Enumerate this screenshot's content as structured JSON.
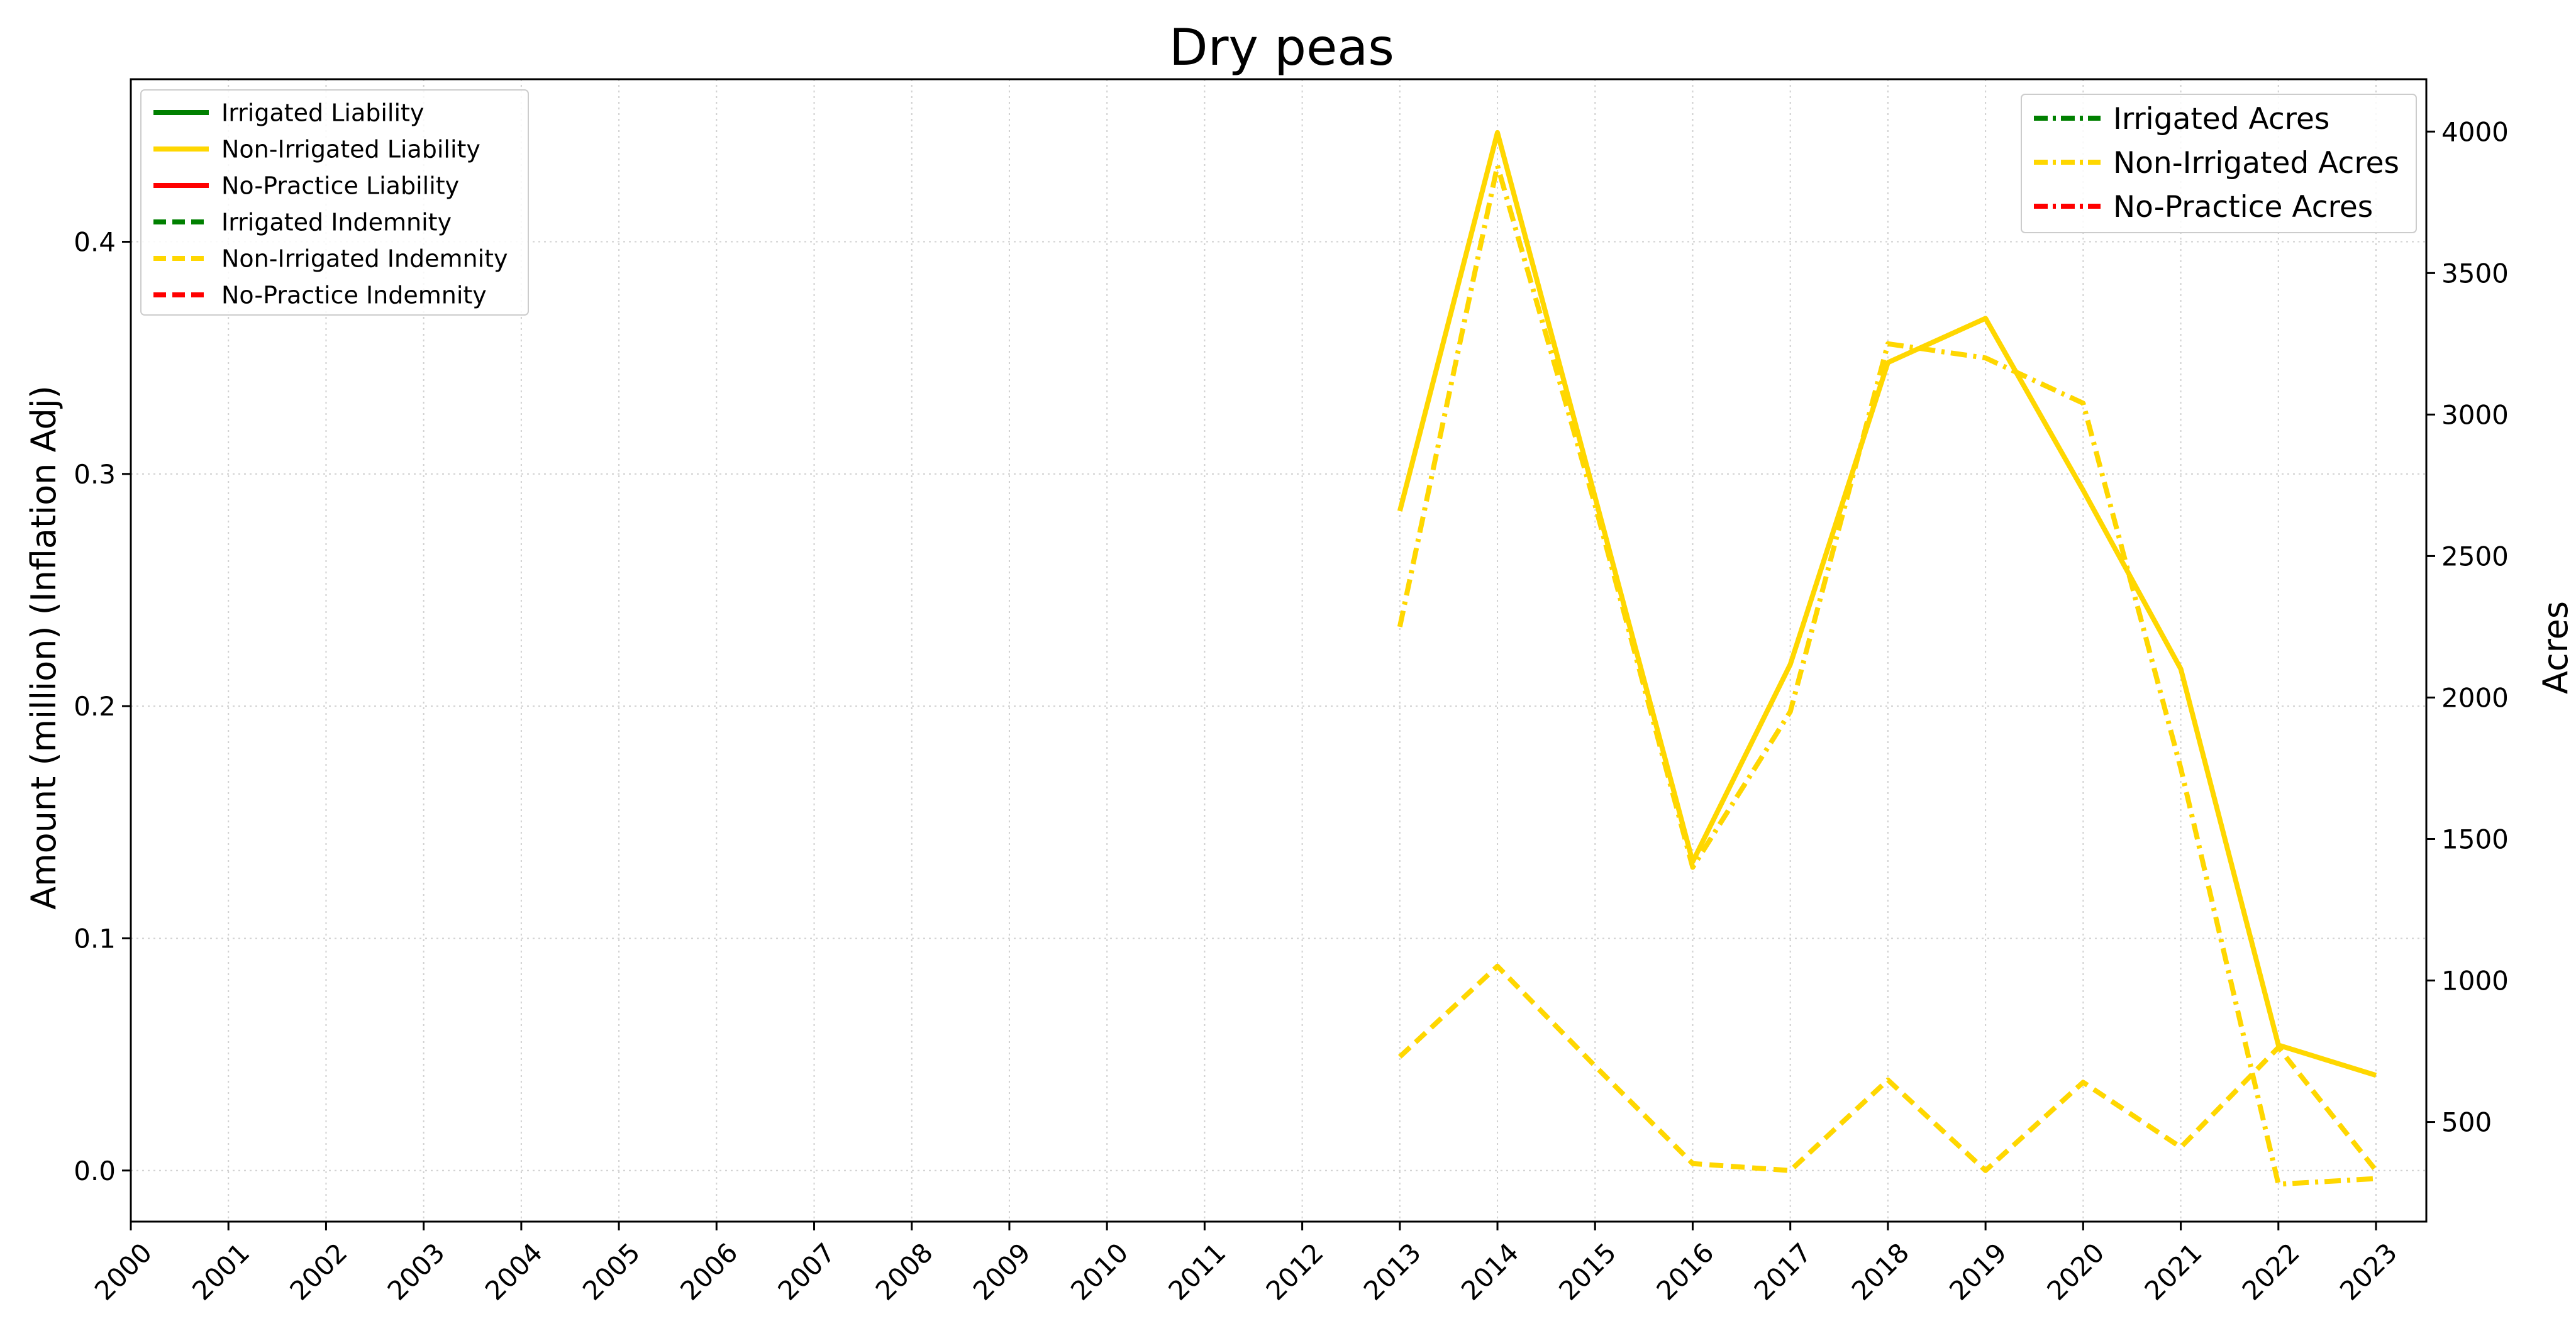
{
  "chart_data": {
    "type": "line",
    "title": "Dry peas",
    "ylabel_left": "Amount (million) (Inflation Adj)",
    "ylabel_right": "Acres",
    "xlabel": "",
    "x": [
      "2000",
      "2001",
      "2002",
      "2003",
      "2004",
      "2005",
      "2006",
      "2007",
      "2008",
      "2009",
      "2010",
      "2011",
      "2012",
      "2013",
      "2014",
      "2015",
      "2016",
      "2017",
      "2018",
      "2019",
      "2020",
      "2021",
      "2022",
      "2023"
    ],
    "ylim_left": [
      -0.022,
      0.47
    ],
    "ylim_right": [
      148,
      4185
    ],
    "yticks_left": [
      "0.0",
      "0.1",
      "0.2",
      "0.3",
      "0.4"
    ],
    "yticks_left_values": [
      0,
      0.1,
      0.2,
      0.3,
      0.4
    ],
    "yticks_right": [
      "500",
      "1000",
      "1500",
      "2000",
      "2500",
      "3000",
      "3500",
      "4000"
    ],
    "yticks_right_values": [
      500,
      1000,
      1500,
      2000,
      2500,
      3000,
      3500,
      4000
    ],
    "grid": true,
    "colors": {
      "irrigated": "#008000",
      "non_irrigated": "#FFD700",
      "no_practice": "#FF0000"
    },
    "series_left": [
      {
        "name": "Irrigated Liability",
        "style": "solid",
        "color": "#008000",
        "values": []
      },
      {
        "name": "Non-Irrigated Liability",
        "style": "solid",
        "color": "#FFD700",
        "x": [
          "2013",
          "2014",
          "2015",
          "2016",
          "2017",
          "2018",
          "2019",
          "2020",
          "2021",
          "2022",
          "2023"
        ],
        "values": [
          0.284,
          0.447,
          0.29,
          0.133,
          0.218,
          0.348,
          0.367,
          0.293,
          0.216,
          0.054,
          0.041
        ]
      },
      {
        "name": "No-Practice Liability",
        "style": "solid",
        "color": "#FF0000",
        "values": []
      },
      {
        "name": "Irrigated Indemnity",
        "style": "dashed",
        "color": "#008000",
        "values": []
      },
      {
        "name": "Non-Irrigated Indemnity",
        "style": "dashed",
        "color": "#FFD700",
        "x": [
          "2013",
          "2014",
          "2015",
          "2016",
          "2017",
          "2018",
          "2019",
          "2020",
          "2021",
          "2022",
          "2023"
        ],
        "values": [
          0.049,
          0.088,
          0.045,
          0.003,
          0.0,
          0.039,
          0.0,
          0.038,
          0.01,
          0.053,
          0.0
        ]
      },
      {
        "name": "No-Practice Indemnity",
        "style": "dashed",
        "color": "#FF0000",
        "values": []
      }
    ],
    "series_right": [
      {
        "name": "Irrigated Acres",
        "style": "dashdot",
        "color": "#008000",
        "values": []
      },
      {
        "name": "Non-Irrigated Acres",
        "style": "dashdot",
        "color": "#FFD700",
        "x": [
          "2013",
          "2014",
          "2015",
          "2016",
          "2017",
          "2018",
          "2019",
          "2020",
          "2021",
          "2022",
          "2023"
        ],
        "values": [
          2250,
          3880,
          2680,
          1400,
          1950,
          3250,
          3200,
          3040,
          1750,
          280,
          300
        ]
      },
      {
        "name": "No-Practice Acres",
        "style": "dashdot",
        "color": "#FF0000",
        "values": []
      }
    ],
    "legend_left_placement": "top-left",
    "legend_right_placement": "top-right"
  }
}
